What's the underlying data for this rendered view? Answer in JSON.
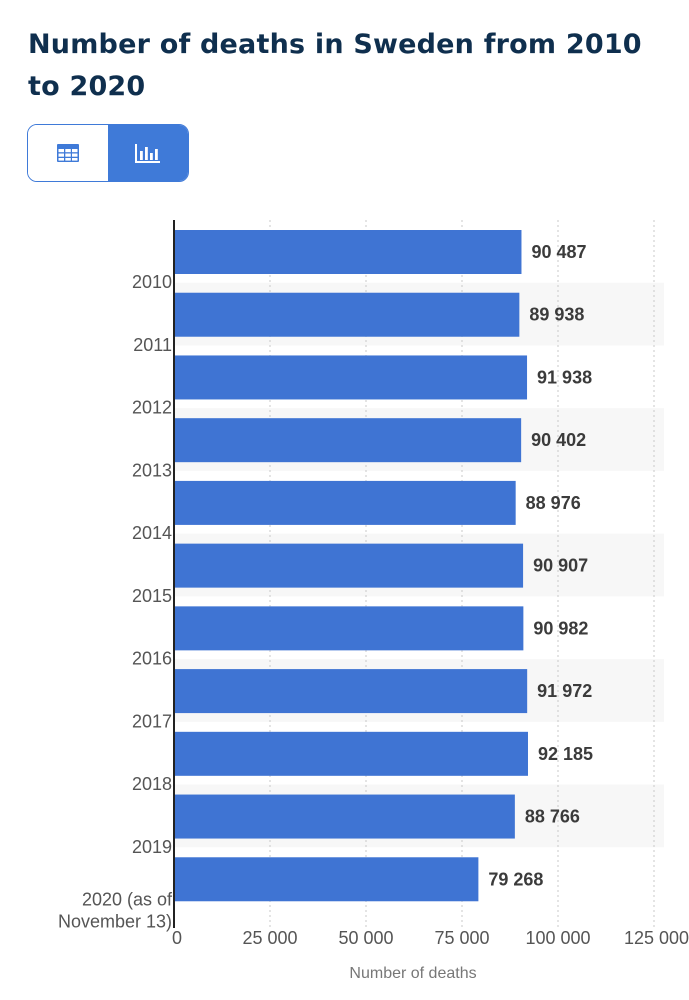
{
  "page_title": "Number of deaths in Sweden from 2010 to 2020",
  "view_toggle": {
    "table_icon": "table-icon",
    "chart_icon": "bar-chart-icon",
    "active": "chart"
  },
  "colors": {
    "bar": "#3f74d3",
    "title": "#0f2f4e",
    "accent": "#3f7ad8"
  },
  "chart_data": {
    "type": "bar",
    "orientation": "horizontal",
    "title": "Number of deaths in Sweden from 2010 to 2020",
    "categories": [
      "2010",
      "2011",
      "2012",
      "2013",
      "2014",
      "2015",
      "2016",
      "2017",
      "2018",
      "2019",
      "2020 (as of November 13)"
    ],
    "values": [
      90487,
      89938,
      91938,
      90402,
      88976,
      90907,
      90982,
      91972,
      92185,
      88766,
      79268
    ],
    "value_labels": [
      "90 487",
      "89 938",
      "91 938",
      "90 402",
      "88 976",
      "90 907",
      "90 982",
      "91 972",
      "92 185",
      "88 766",
      "79 268"
    ],
    "xlabel": "Number of deaths",
    "ylabel": "",
    "xlim": [
      0,
      125000
    ],
    "x_ticks": [
      0,
      25000,
      50000,
      75000,
      100000,
      125000
    ],
    "x_tick_labels": [
      "0",
      "25 000",
      "50 000",
      "75 000",
      "100 000",
      "125 000"
    ],
    "grid": true
  }
}
